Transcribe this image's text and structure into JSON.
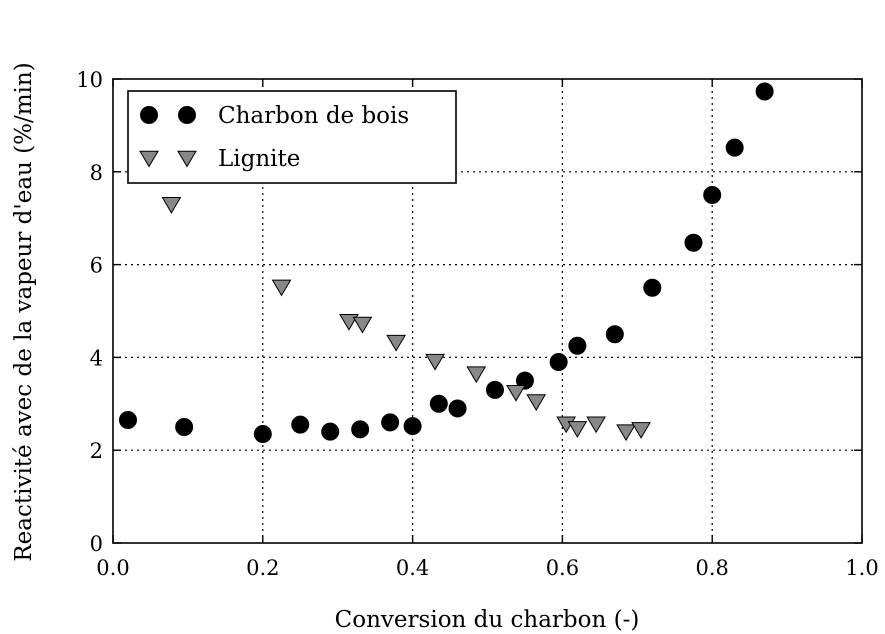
{
  "chart_data": {
    "type": "scatter",
    "title": "",
    "xlabel": "Conversion du charbon (-)",
    "ylabel": "Reactivité avec de la vapeur d'eau (%/min)",
    "xlim": [
      0.0,
      1.0
    ],
    "ylim": [
      0,
      10
    ],
    "xticks": [
      "0.0",
      "0.2",
      "0.4",
      "0.6",
      "0.8",
      "1.0"
    ],
    "yticks": [
      "0",
      "2",
      "4",
      "6",
      "8",
      "10"
    ],
    "grid": true,
    "legend_position": "top-left",
    "series": [
      {
        "name": "Charbon de bois",
        "marker": "circle",
        "color": "#000000",
        "points": [
          [
            0.02,
            2.65
          ],
          [
            0.095,
            2.5
          ],
          [
            0.2,
            2.35
          ],
          [
            0.25,
            2.55
          ],
          [
            0.29,
            2.4
          ],
          [
            0.33,
            2.45
          ],
          [
            0.37,
            2.6
          ],
          [
            0.4,
            2.52
          ],
          [
            0.435,
            3.0
          ],
          [
            0.46,
            2.9
          ],
          [
            0.51,
            3.3
          ],
          [
            0.55,
            3.5
          ],
          [
            0.595,
            3.9
          ],
          [
            0.62,
            4.25
          ],
          [
            0.67,
            4.5
          ],
          [
            0.72,
            5.5
          ],
          [
            0.775,
            6.47
          ],
          [
            0.8,
            7.5
          ],
          [
            0.83,
            8.52
          ],
          [
            0.87,
            9.73
          ]
        ]
      },
      {
        "name": "Lignite",
        "marker": "triangle-down",
        "color": "#888888",
        "points": [
          [
            0.078,
            7.3
          ],
          [
            0.225,
            5.52
          ],
          [
            0.315,
            4.78
          ],
          [
            0.333,
            4.72
          ],
          [
            0.378,
            4.33
          ],
          [
            0.43,
            3.92
          ],
          [
            0.485,
            3.65
          ],
          [
            0.538,
            3.25
          ],
          [
            0.565,
            3.05
          ],
          [
            0.605,
            2.57
          ],
          [
            0.62,
            2.47
          ],
          [
            0.645,
            2.57
          ],
          [
            0.685,
            2.4
          ],
          [
            0.705,
            2.45
          ]
        ]
      }
    ]
  }
}
